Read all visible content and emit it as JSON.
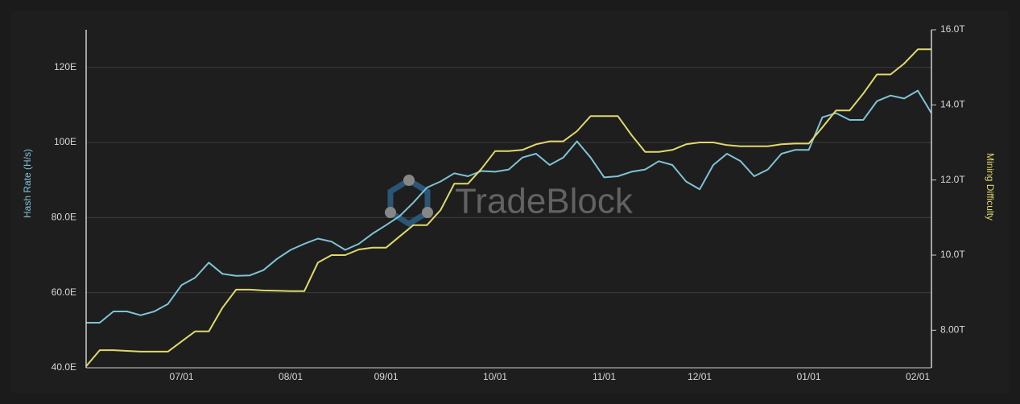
{
  "chart_data": {
    "type": "line",
    "watermark": "TradeBlock",
    "ylabel": "Hash Rate (H/s)",
    "y2label": "Mining Difficulty",
    "grid": true,
    "ylim": [
      40,
      130
    ],
    "yticks": [
      {
        "value": 40,
        "label": "40.0E"
      },
      {
        "value": 60,
        "label": "60.0E"
      },
      {
        "value": 80,
        "label": "80.0E"
      },
      {
        "value": 100,
        "label": "100E"
      },
      {
        "value": 120,
        "label": "120E"
      }
    ],
    "y2lim": [
      7,
      16
    ],
    "y2ticks": [
      {
        "value": 8,
        "label": "8.00T"
      },
      {
        "value": 10,
        "label": "10.0T"
      },
      {
        "value": 12,
        "label": "12.0T"
      },
      {
        "value": 14,
        "label": "14.0T"
      },
      {
        "value": 16,
        "label": "16.0T"
      }
    ],
    "categories": [
      null,
      null,
      null,
      null,
      null,
      null,
      null,
      "07/01",
      null,
      null,
      null,
      null,
      null,
      null,
      null,
      "08/01",
      null,
      null,
      null,
      null,
      null,
      null,
      "09/01",
      null,
      null,
      null,
      null,
      null,
      null,
      null,
      "10/01",
      null,
      null,
      null,
      null,
      null,
      null,
      null,
      "11/01",
      null,
      null,
      null,
      null,
      null,
      null,
      "12/01",
      null,
      null,
      null,
      null,
      null,
      null,
      null,
      "01/01",
      null,
      null,
      null,
      null,
      null,
      null,
      null,
      "02/01",
      null
    ],
    "series": [
      {
        "color": "#7ec3d6",
        "axis": "y",
        "values": [
          52,
          52,
          55,
          55,
          54,
          55,
          57,
          62,
          64,
          68,
          65,
          64.5,
          64.6,
          66,
          69,
          71.4,
          73,
          74.4,
          73.6,
          71.4,
          73,
          75.7,
          78,
          80.4,
          84,
          88,
          89.6,
          91.8,
          91,
          92.4,
          92.2,
          92.8,
          96,
          97,
          94,
          96,
          100.3,
          96,
          90.7,
          91,
          92.2,
          92.8,
          95,
          94,
          89.6,
          87.5,
          94,
          97,
          95,
          91,
          92.8,
          97,
          98,
          98,
          106.7,
          107.8,
          106,
          106,
          111,
          112.5,
          111.7,
          113.8,
          107.8
        ]
      },
      {
        "color": "#e0d96b",
        "axis": "y2",
        "values": [
          7.04,
          7.47,
          7.47,
          7.45,
          7.43,
          7.43,
          7.43,
          7.7,
          7.97,
          7.97,
          8.6,
          9.08,
          9.08,
          9.06,
          9.05,
          9.04,
          9.04,
          9.8,
          10.0,
          10.0,
          10.15,
          10.2,
          10.2,
          10.5,
          10.8,
          10.8,
          11.2,
          11.9,
          11.9,
          12.3,
          12.77,
          12.77,
          12.8,
          12.95,
          13.03,
          13.03,
          13.3,
          13.7,
          13.7,
          13.7,
          13.2,
          12.75,
          12.75,
          12.8,
          12.95,
          13.0,
          13.0,
          12.93,
          12.9,
          12.9,
          12.9,
          12.95,
          12.97,
          12.97,
          13.4,
          13.85,
          13.85,
          14.3,
          14.81,
          14.81,
          15.1,
          15.48,
          15.48
        ]
      }
    ]
  }
}
